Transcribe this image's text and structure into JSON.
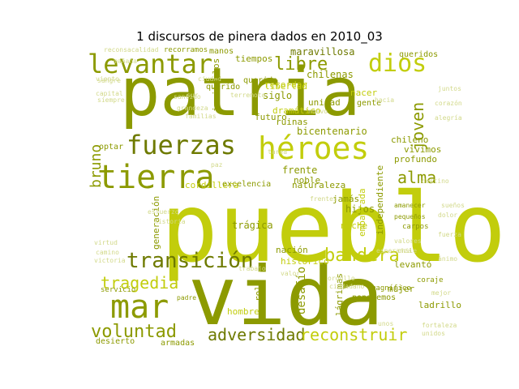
{
  "chart_data": {
    "type": "word_cloud",
    "title": "1 discursos de pinera dados en 2010_03",
    "palette": {
      "olive": "#8c9a00",
      "lime": "#c2cd0c",
      "dark": "#6e7a00",
      "pale": "#d2d98a",
      "faint": "#e3e8b8"
    },
    "words": [
      {
        "text": "pueblo",
        "size": 118,
        "color": "lime",
        "orient": "h"
      },
      {
        "text": "patria",
        "size": 82,
        "color": "olive",
        "orient": "h"
      },
      {
        "text": "vida",
        "size": 100,
        "color": "olive",
        "orient": "h"
      },
      {
        "text": "tierra",
        "size": 40,
        "color": "olive",
        "orient": "h"
      },
      {
        "text": "héroes",
        "size": 38,
        "color": "lime",
        "orient": "h"
      },
      {
        "text": "fuerzas",
        "size": 32,
        "color": "dark",
        "orient": "h"
      },
      {
        "text": "levantar",
        "size": 32,
        "color": "olive",
        "orient": "h"
      },
      {
        "text": "mar",
        "size": 40,
        "color": "olive",
        "orient": "h"
      },
      {
        "text": "transición",
        "size": 26,
        "color": "dark",
        "orient": "h"
      },
      {
        "text": "dios",
        "size": 30,
        "color": "lime",
        "orient": "h"
      },
      {
        "text": "libre",
        "size": 22,
        "color": "olive",
        "orient": "h"
      },
      {
        "text": "bandera",
        "size": 22,
        "color": "lime",
        "orient": "h"
      },
      {
        "text": "tragedia",
        "size": 20,
        "color": "lime",
        "orient": "h"
      },
      {
        "text": "voluntad",
        "size": 22,
        "color": "olive",
        "orient": "h"
      },
      {
        "text": "adversidad",
        "size": 20,
        "color": "dark",
        "orient": "h"
      },
      {
        "text": "reconstruir",
        "size": 20,
        "color": "lime",
        "orient": "h"
      },
      {
        "text": "alma",
        "size": 20,
        "color": "olive",
        "orient": "h"
      },
      {
        "text": "joven",
        "size": 20,
        "color": "olive",
        "orient": "v"
      },
      {
        "text": "bruno",
        "size": 18,
        "color": "olive",
        "orient": "v"
      },
      {
        "text": "desafío",
        "size": 14,
        "color": "olive",
        "orient": "v"
      },
      {
        "text": "maravillosa",
        "size": 12,
        "color": "dark",
        "orient": "h"
      },
      {
        "text": "chilenas",
        "size": 12,
        "color": "olive",
        "orient": "h"
      },
      {
        "text": "bicentenario",
        "size": 12,
        "color": "olive",
        "orient": "h"
      },
      {
        "text": "siglo",
        "size": 12,
        "color": "olive",
        "orient": "h"
      },
      {
        "text": "unidad",
        "size": 11,
        "color": "olive",
        "orient": "h"
      },
      {
        "text": "futuro",
        "size": 11,
        "color": "olive",
        "orient": "h"
      },
      {
        "text": "dramático",
        "size": 11,
        "color": "lime",
        "orient": "h"
      },
      {
        "text": "ruinas",
        "size": 11,
        "color": "olive",
        "orient": "h"
      },
      {
        "text": "recordar",
        "size": 11,
        "color": "lime",
        "orient": "h"
      },
      {
        "text": "chileno",
        "size": 11,
        "color": "olive",
        "orient": "h"
      },
      {
        "text": "vivimos",
        "size": 11,
        "color": "olive",
        "orient": "h"
      },
      {
        "text": "profundo",
        "size": 11,
        "color": "olive",
        "orient": "h"
      },
      {
        "text": "frente",
        "size": 12,
        "color": "olive",
        "orient": "h"
      },
      {
        "text": "noble",
        "size": 11,
        "color": "olive",
        "orient": "h"
      },
      {
        "text": "hijos",
        "size": 12,
        "color": "olive",
        "orient": "h"
      },
      {
        "text": "noche",
        "size": 11,
        "color": "lime",
        "orient": "h"
      },
      {
        "text": "jamás",
        "size": 11,
        "color": "olive",
        "orient": "h"
      },
      {
        "text": "trágica",
        "size": 12,
        "color": "olive",
        "orient": "h"
      },
      {
        "text": "naturaleza",
        "size": 11,
        "color": "olive",
        "orient": "h"
      },
      {
        "text": "cordillera",
        "size": 11,
        "color": "lime",
        "orient": "h"
      },
      {
        "text": "excelencia",
        "size": 10,
        "color": "olive",
        "orient": "h"
      },
      {
        "text": "nación",
        "size": 11,
        "color": "olive",
        "orient": "h"
      },
      {
        "text": "histórico",
        "size": 11,
        "color": "lime",
        "orient": "h"
      },
      {
        "text": "levantó",
        "size": 11,
        "color": "olive",
        "orient": "h"
      },
      {
        "text": "hombre",
        "size": 11,
        "color": "lime",
        "orient": "h"
      },
      {
        "text": "lágrimas",
        "size": 11,
        "color": "olive",
        "orient": "v"
      },
      {
        "text": "mujer",
        "size": 11,
        "color": "olive",
        "orient": "h"
      },
      {
        "text": "ladrillo",
        "size": 11,
        "color": "olive",
        "orient": "h"
      },
      {
        "text": "armadas",
        "size": 10,
        "color": "olive",
        "orient": "h"
      },
      {
        "text": "desierto",
        "size": 10,
        "color": "olive",
        "orient": "h"
      },
      {
        "text": "libertad",
        "size": 11,
        "color": "lime",
        "orient": "h"
      },
      {
        "text": "tiempos",
        "size": 11,
        "color": "olive",
        "orient": "h"
      },
      {
        "text": "querido",
        "size": 10,
        "color": "olive",
        "orient": "h"
      },
      {
        "text": "querido",
        "size": 10,
        "color": "olive",
        "orient": "h"
      },
      {
        "text": "queridos",
        "size": 10,
        "color": "olive",
        "orient": "h"
      },
      {
        "text": "manos",
        "size": 10,
        "color": "olive",
        "orient": "h"
      },
      {
        "text": "recorramos",
        "size": 9,
        "color": "olive",
        "orient": "h"
      },
      {
        "text": "reconsacalidad",
        "size": 8,
        "color": "pale",
        "orient": "h"
      },
      {
        "text": "santido",
        "size": 8,
        "color": "pale",
        "orient": "h"
      },
      {
        "text": "nacer",
        "size": 11,
        "color": "lime",
        "orient": "h"
      },
      {
        "text": "gente",
        "size": 10,
        "color": "olive",
        "orient": "h"
      },
      {
        "text": "embarrada",
        "size": 11,
        "color": "lime",
        "orient": "v"
      },
      {
        "text": "independiente",
        "size": 11,
        "color": "olive",
        "orient": "v"
      },
      {
        "text": "generación",
        "size": 11,
        "color": "olive",
        "orient": "v"
      },
      {
        "text": "rola",
        "size": 11,
        "color": "olive",
        "orient": "v"
      },
      {
        "text": "optar",
        "size": 10,
        "color": "olive",
        "orient": "h"
      },
      {
        "text": "servicio",
        "size": 9,
        "color": "olive",
        "orient": "h"
      },
      {
        "text": "magnífico",
        "size": 9,
        "color": "olive",
        "orient": "h"
      },
      {
        "text": "pondremos",
        "size": 10,
        "color": "olive",
        "orient": "h"
      },
      {
        "text": "coraje",
        "size": 9,
        "color": "olive",
        "orient": "h"
      },
      {
        "text": "amanecer",
        "size": 8,
        "color": "olive",
        "orient": "h"
      },
      {
        "text": "pequeños",
        "size": 8,
        "color": "olive",
        "orient": "h"
      },
      {
        "text": "carpos",
        "size": 9,
        "color": "olive",
        "orient": "h"
      },
      {
        "text": "padre",
        "size": 8,
        "color": "olive",
        "orient": "h"
      },
      {
        "text": "ciudad",
        "size": 8,
        "color": "pale",
        "orient": "h"
      },
      {
        "text": "capital",
        "size": 8,
        "color": "pale",
        "orient": "h"
      },
      {
        "text": "siempre",
        "size": 8,
        "color": "pale",
        "orient": "h"
      },
      {
        "text": "grandeza",
        "size": 8,
        "color": "pale",
        "orient": "h"
      },
      {
        "text": "familias",
        "size": 8,
        "color": "pale",
        "orient": "h"
      },
      {
        "text": "esfuerzo",
        "size": 8,
        "color": "pale",
        "orient": "h"
      },
      {
        "text": "historia",
        "size": 8,
        "color": "pale",
        "orient": "h"
      },
      {
        "text": "virtud",
        "size": 8,
        "color": "pale",
        "orient": "h"
      },
      {
        "text": "camino",
        "size": 8,
        "color": "pale",
        "orient": "h"
      },
      {
        "text": "orgullo",
        "size": 8,
        "color": "pale",
        "orient": "h"
      },
      {
        "text": "ciudadano",
        "size": 8,
        "color": "pale",
        "orient": "h"
      },
      {
        "text": "fortaleza",
        "size": 8,
        "color": "pale",
        "orient": "h"
      },
      {
        "text": "unidos",
        "size": 8,
        "color": "pale",
        "orient": "h"
      },
      {
        "text": "valores",
        "size": 8,
        "color": "pale",
        "orient": "h"
      },
      {
        "text": "fuerza",
        "size": 8,
        "color": "pale",
        "orient": "h"
      },
      {
        "text": "sangre",
        "size": 8,
        "color": "pale",
        "orient": "h"
      },
      {
        "text": "corazón",
        "size": 8,
        "color": "pale",
        "orient": "h"
      },
      {
        "text": "alegría",
        "size": 8,
        "color": "pale",
        "orient": "h"
      },
      {
        "text": "juntos",
        "size": 8,
        "color": "pale",
        "orient": "h"
      },
      {
        "text": "nuevo",
        "size": 8,
        "color": "pale",
        "orient": "h"
      },
      {
        "text": "trabajo",
        "size": 8,
        "color": "pale",
        "orient": "h"
      },
      {
        "text": "viento",
        "size": 8,
        "color": "pale",
        "orient": "h"
      },
      {
        "text": "mañana",
        "size": 8,
        "color": "pale",
        "orient": "h"
      },
      {
        "text": "unos",
        "size": 8,
        "color": "pale",
        "orient": "h"
      },
      {
        "text": "sueños",
        "size": 8,
        "color": "pale",
        "orient": "h"
      },
      {
        "text": "dolor",
        "size": 8,
        "color": "pale",
        "orient": "h"
      },
      {
        "text": "ánimo",
        "size": 8,
        "color": "pale",
        "orient": "h"
      },
      {
        "text": "hacia",
        "size": 8,
        "color": "pale",
        "orient": "h"
      },
      {
        "text": "paz",
        "size": 8,
        "color": "pale",
        "orient": "h"
      },
      {
        "text": "tarea",
        "size": 8,
        "color": "pale",
        "orient": "h"
      },
      {
        "text": "destino",
        "size": 8,
        "color": "pale",
        "orient": "h"
      },
      {
        "text": "mejor",
        "size": 8,
        "color": "pale",
        "orient": "h"
      },
      {
        "text": "valor",
        "size": 8,
        "color": "pale",
        "orient": "h"
      },
      {
        "text": "frentes",
        "size": 8,
        "color": "pale",
        "orient": "h"
      },
      {
        "text": "chile",
        "size": 8,
        "color": "pale",
        "orient": "h"
      },
      {
        "text": "victoria",
        "size": 8,
        "color": "pale",
        "orient": "h"
      },
      {
        "text": "esperanza",
        "size": 8,
        "color": "pale",
        "orient": "h"
      },
      {
        "text": "terremoto",
        "size": 8,
        "color": "pale",
        "orient": "h"
      },
      {
        "text": "invitarlos",
        "size": 11,
        "color": "olive",
        "orient": "v"
      },
      {
        "text": "sur",
        "size": 8,
        "color": "pale",
        "orient": "h"
      }
    ]
  }
}
